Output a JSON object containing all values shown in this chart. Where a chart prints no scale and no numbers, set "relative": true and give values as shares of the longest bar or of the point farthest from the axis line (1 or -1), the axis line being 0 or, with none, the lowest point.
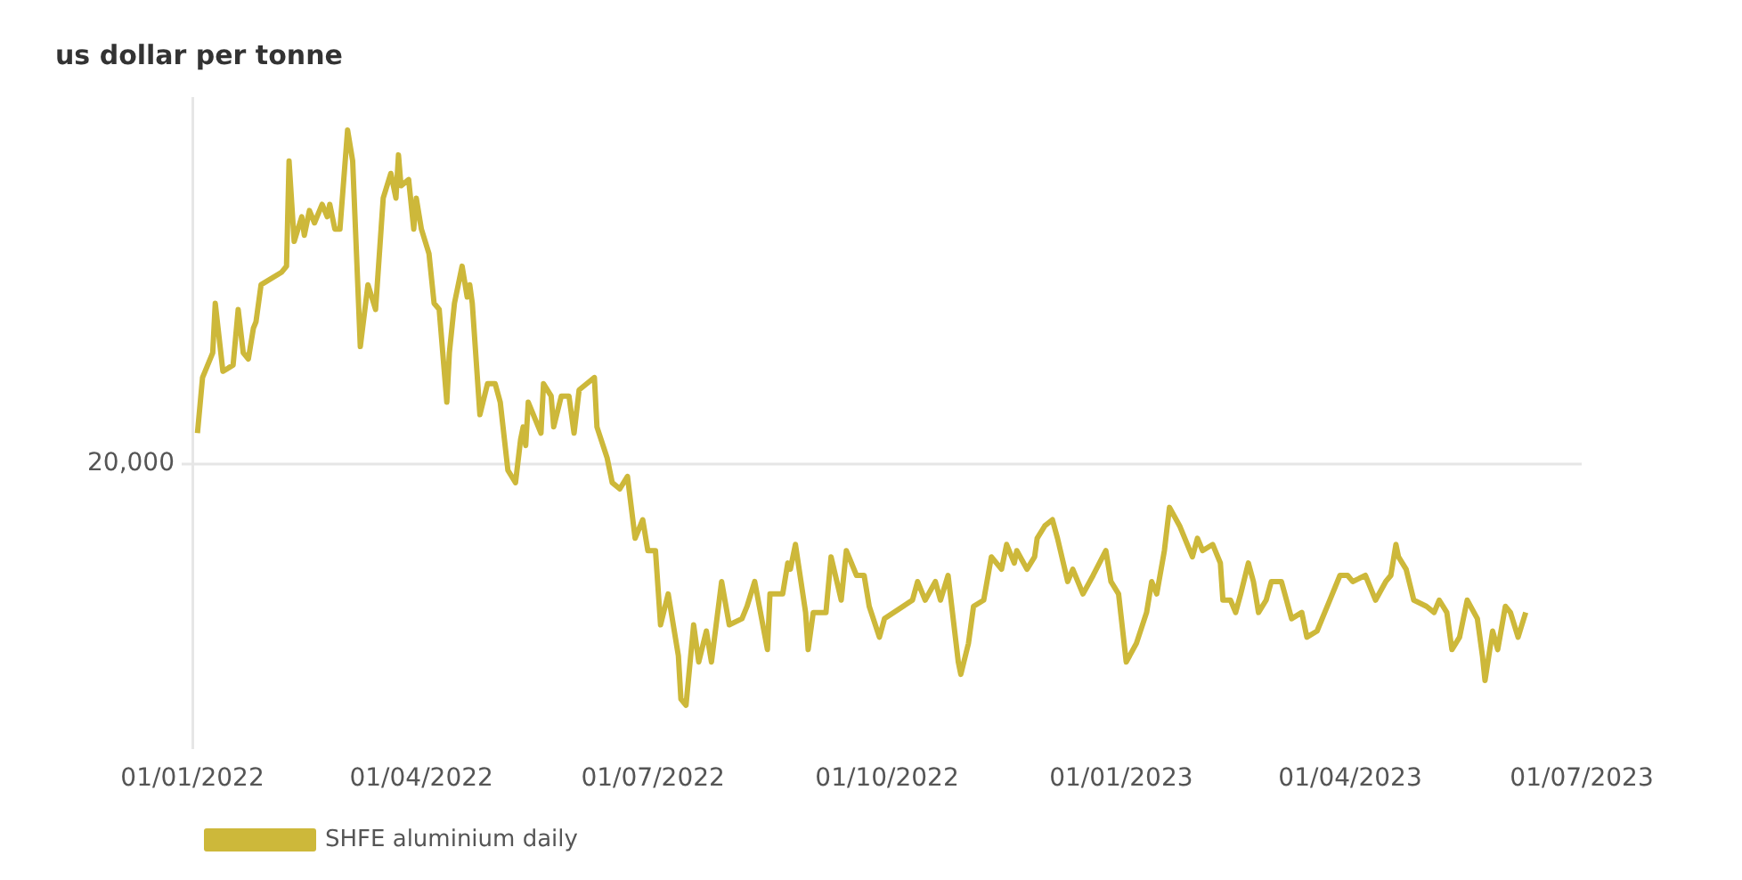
{
  "chart_data": {
    "type": "line",
    "ylabel": "us dollar per tonne",
    "relative": true,
    "legend": "bottom left",
    "marker": "none",
    "line_style": "solid",
    "xlim": [
      "2022-01-01",
      "2023-07-01"
    ],
    "xticks": [
      {
        "value": "2022-01-01",
        "label": "01/01/2022"
      },
      {
        "value": "2022-04-01",
        "label": "01/04/2022"
      },
      {
        "value": "2022-07-01",
        "label": "01/07/2022"
      },
      {
        "value": "2022-10-01",
        "label": "01/10/2022"
      },
      {
        "value": "2023-01-01",
        "label": "01/01/2023"
      },
      {
        "value": "2023-04-01",
        "label": "01/04/2023"
      },
      {
        "value": "2023-07-01",
        "label": "01/07/2023"
      }
    ],
    "ref_lines": [
      {
        "axis": "y",
        "value": 0.46,
        "color": "#e6e6e6"
      }
    ],
    "annotations": [
      "20,000"
    ],
    "series": [
      {
        "name": "SHFE aluminium daily",
        "color": "#cdb83a",
        "x": [
          "2022-01-03",
          "2022-01-05",
          "2022-01-09",
          "2022-01-10",
          "2022-01-13",
          "2022-01-17",
          "2022-01-19",
          "2022-01-21",
          "2022-01-23",
          "2022-01-25",
          "2022-01-26",
          "2022-01-28",
          "2022-02-05",
          "2022-02-07",
          "2022-02-08",
          "2022-02-10",
          "2022-02-13",
          "2022-02-14",
          "2022-02-16",
          "2022-02-18",
          "2022-02-21",
          "2022-02-23",
          "2022-02-24",
          "2022-02-26",
          "2022-02-28",
          "2022-03-03",
          "2022-03-05",
          "2022-03-08",
          "2022-03-11",
          "2022-03-14",
          "2022-03-17",
          "2022-03-20",
          "2022-03-22",
          "2022-03-23",
          "2022-03-24",
          "2022-03-27",
          "2022-03-29",
          "2022-03-30",
          "2022-04-01",
          "2022-04-04",
          "2022-04-06",
          "2022-04-08",
          "2022-04-11",
          "2022-04-12",
          "2022-04-14",
          "2022-04-17",
          "2022-04-19",
          "2022-04-20",
          "2022-04-21",
          "2022-04-24",
          "2022-04-27",
          "2022-04-30",
          "2022-05-02",
          "2022-05-05",
          "2022-05-08",
          "2022-05-10",
          "2022-05-11",
          "2022-05-12",
          "2022-05-13",
          "2022-05-18",
          "2022-05-19",
          "2022-05-22",
          "2022-05-23",
          "2022-05-26",
          "2022-05-29",
          "2022-05-31",
          "2022-06-02",
          "2022-06-05",
          "2022-06-08",
          "2022-06-09",
          "2022-06-13",
          "2022-06-15",
          "2022-06-18",
          "2022-06-21",
          "2022-06-24",
          "2022-06-27",
          "2022-06-29",
          "2022-07-02",
          "2022-07-04",
          "2022-07-07",
          "2022-07-11",
          "2022-07-12",
          "2022-07-14",
          "2022-07-17",
          "2022-07-19",
          "2022-07-22",
          "2022-07-24",
          "2022-07-28",
          "2022-07-31",
          "2022-08-05",
          "2022-08-07",
          "2022-08-10",
          "2022-08-15",
          "2022-08-16",
          "2022-08-21",
          "2022-08-23",
          "2022-08-24",
          "2022-08-26",
          "2022-08-30",
          "2022-08-31",
          "2022-09-02",
          "2022-09-07",
          "2022-09-09",
          "2022-09-13",
          "2022-09-15",
          "2022-09-19",
          "2022-09-22",
          "2022-09-24",
          "2022-09-28",
          "2022-09-30",
          "2022-10-11",
          "2022-10-13",
          "2022-10-16",
          "2022-10-20",
          "2022-10-22",
          "2022-10-25",
          "2022-10-29",
          "2022-10-30",
          "2022-11-02",
          "2022-11-04",
          "2022-11-08",
          "2022-11-11",
          "2022-11-15",
          "2022-11-17",
          "2022-11-20",
          "2022-11-21",
          "2022-11-25",
          "2022-11-28",
          "2022-11-29",
          "2022-12-02",
          "2022-12-05",
          "2022-12-07",
          "2022-12-11",
          "2022-12-13",
          "2022-12-17",
          "2022-12-21",
          "2022-12-26",
          "2022-12-28",
          "2022-12-31",
          "2023-01-03",
          "2023-01-07",
          "2023-01-11",
          "2023-01-13",
          "2023-01-15",
          "2023-01-18",
          "2023-01-20",
          "2023-01-24",
          "2023-01-29",
          "2023-01-31",
          "2023-02-02",
          "2023-02-06",
          "2023-02-09",
          "2023-02-10",
          "2023-02-13",
          "2023-02-15",
          "2023-02-17",
          "2023-02-20",
          "2023-02-22",
          "2023-02-24",
          "2023-02-27",
          "2023-03-01",
          "2023-03-05",
          "2023-03-07",
          "2023-03-09",
          "2023-03-13",
          "2023-03-15",
          "2023-03-19",
          "2023-03-24",
          "2023-03-28",
          "2023-03-31",
          "2023-04-02",
          "2023-04-07",
          "2023-04-11",
          "2023-04-15",
          "2023-04-17",
          "2023-04-19",
          "2023-04-20",
          "2023-04-23",
          "2023-04-26",
          "2023-05-01",
          "2023-05-04",
          "2023-05-06",
          "2023-05-09",
          "2023-05-11",
          "2023-05-14",
          "2023-05-17",
          "2023-05-21",
          "2023-05-23",
          "2023-05-24",
          "2023-05-27",
          "2023-05-29",
          "2023-06-01",
          "2023-06-03",
          "2023-06-06",
          "2023-06-09"
        ],
        "values": [
          0.51,
          0.6,
          0.64,
          0.72,
          0.61,
          0.62,
          0.71,
          0.64,
          0.63,
          0.68,
          0.69,
          0.75,
          0.77,
          0.78,
          0.95,
          0.82,
          0.86,
          0.83,
          0.87,
          0.85,
          0.88,
          0.86,
          0.88,
          0.84,
          0.84,
          1.0,
          0.95,
          0.65,
          0.75,
          0.71,
          0.89,
          0.93,
          0.89,
          0.96,
          0.91,
          0.92,
          0.84,
          0.89,
          0.84,
          0.8,
          0.72,
          0.71,
          0.56,
          0.64,
          0.72,
          0.78,
          0.73,
          0.75,
          0.72,
          0.54,
          0.59,
          0.59,
          0.56,
          0.45,
          0.43,
          0.5,
          0.52,
          0.49,
          0.56,
          0.51,
          0.59,
          0.57,
          0.52,
          0.57,
          0.57,
          0.51,
          0.58,
          0.59,
          0.6,
          0.52,
          0.47,
          0.43,
          0.42,
          0.44,
          0.34,
          0.37,
          0.32,
          0.32,
          0.2,
          0.25,
          0.15,
          0.08,
          0.07,
          0.2,
          0.14,
          0.19,
          0.14,
          0.27,
          0.2,
          0.21,
          0.23,
          0.27,
          0.16,
          0.25,
          0.25,
          0.3,
          0.29,
          0.33,
          0.22,
          0.16,
          0.22,
          0.22,
          0.31,
          0.24,
          0.32,
          0.28,
          0.28,
          0.23,
          0.18,
          0.21,
          0.24,
          0.27,
          0.24,
          0.27,
          0.24,
          0.28,
          0.14,
          0.12,
          0.17,
          0.23,
          0.24,
          0.31,
          0.29,
          0.33,
          0.3,
          0.32,
          0.29,
          0.31,
          0.34,
          0.36,
          0.37,
          0.34,
          0.27,
          0.29,
          0.25,
          0.28,
          0.32,
          0.27,
          0.25,
          0.14,
          0.17,
          0.22,
          0.27,
          0.25,
          0.32,
          0.39,
          0.36,
          0.31,
          0.34,
          0.32,
          0.33,
          0.3,
          0.24,
          0.24,
          0.22,
          0.25,
          0.3,
          0.27,
          0.22,
          0.24,
          0.27,
          0.27,
          0.24,
          0.21,
          0.22,
          0.18,
          0.19,
          0.24,
          0.28,
          0.28,
          0.27,
          0.28,
          0.24,
          0.27,
          0.28,
          0.33,
          0.31,
          0.29,
          0.24,
          0.23,
          0.22,
          0.24,
          0.22,
          0.16,
          0.18,
          0.24,
          0.21,
          0.15,
          0.11,
          0.19,
          0.16,
          0.23,
          0.22,
          0.18,
          0.22
        ]
      }
    ]
  }
}
